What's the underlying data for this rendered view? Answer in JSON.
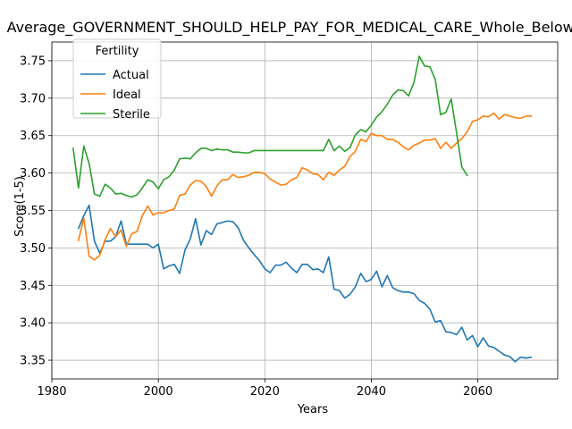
{
  "chart_data": {
    "type": "line",
    "title": "Average_GOVERNMENT_SHOULD_HELP_PAY_FOR_MEDICAL_CARE_Whole_Below_Average",
    "xlabel": "Years",
    "ylabel": "Score(1-5)",
    "xlim": [
      1980,
      2075
    ],
    "ylim": [
      3.325,
      3.775
    ],
    "xticks": [
      1980,
      2000,
      2020,
      2040,
      2060
    ],
    "yticks": [
      3.35,
      3.4,
      3.45,
      3.5,
      3.55,
      3.6,
      3.65,
      3.7,
      3.75
    ],
    "grid": true,
    "legend": {
      "title": "Fertility",
      "position": "upper-left"
    },
    "series": [
      {
        "name": "Actual",
        "color": "#1f77b4",
        "x": [
          1985,
          1986,
          1987,
          1988,
          1989,
          1990,
          1991,
          1992,
          1993,
          1994,
          1995,
          1996,
          1997,
          1998,
          1999,
          2000,
          2001,
          2002,
          2003,
          2004,
          2005,
          2006,
          2007,
          2008,
          2009,
          2010,
          2011,
          2012,
          2013,
          2014,
          2015,
          2016,
          2017,
          2018,
          2019,
          2020,
          2021,
          2022,
          2023,
          2024,
          2025,
          2026,
          2027,
          2028,
          2029,
          2030,
          2031,
          2032,
          2033,
          2034,
          2035,
          2036,
          2037,
          2038,
          2039,
          2040,
          2041,
          2042,
          2043,
          2044,
          2045,
          2046,
          2047,
          2048,
          2049,
          2050,
          2051,
          2052,
          2053,
          2054,
          2055,
          2056,
          2057,
          2058,
          2059,
          2060,
          2061,
          2062,
          2063,
          2064,
          2065,
          2066,
          2067,
          2068,
          2069,
          2070
        ],
        "values": [
          3.526,
          3.543,
          3.557,
          3.509,
          3.493,
          3.509,
          3.509,
          3.515,
          3.536,
          3.505,
          3.505,
          3.505,
          3.505,
          3.505,
          3.5,
          3.505,
          3.472,
          3.476,
          3.478,
          3.466,
          3.497,
          3.512,
          3.539,
          3.504,
          3.523,
          3.518,
          3.532,
          3.534,
          3.536,
          3.535,
          3.527,
          3.51,
          3.5,
          3.491,
          3.483,
          3.472,
          3.467,
          3.477,
          3.477,
          3.481,
          3.473,
          3.467,
          3.478,
          3.478,
          3.471,
          3.472,
          3.467,
          3.488,
          3.445,
          3.443,
          3.433,
          3.438,
          3.448,
          3.466,
          3.455,
          3.458,
          3.469,
          3.448,
          3.463,
          3.447,
          3.443,
          3.441,
          3.441,
          3.439,
          3.43,
          3.426,
          3.418,
          3.401,
          3.403,
          3.388,
          3.387,
          3.384,
          3.394,
          3.377,
          3.383,
          3.368,
          3.38,
          3.369,
          3.367,
          3.362,
          3.357,
          3.355,
          3.348,
          3.354,
          3.353,
          3.354
        ]
      },
      {
        "name": "Ideal",
        "color": "#ff7f0e",
        "x": [
          1985,
          1986,
          1987,
          1988,
          1989,
          1990,
          1991,
          1992,
          1993,
          1994,
          1995,
          1996,
          1997,
          1998,
          1999,
          2000,
          2001,
          2002,
          2003,
          2004,
          2005,
          2006,
          2007,
          2008,
          2009,
          2010,
          2011,
          2012,
          2013,
          2014,
          2015,
          2016,
          2017,
          2018,
          2019,
          2020,
          2021,
          2022,
          2023,
          2024,
          2025,
          2026,
          2027,
          2028,
          2029,
          2030,
          2031,
          2032,
          2033,
          2034,
          2035,
          2036,
          2037,
          2038,
          2039,
          2040,
          2041,
          2042,
          2043,
          2044,
          2045,
          2046,
          2047,
          2048,
          2049,
          2050,
          2051,
          2052,
          2053,
          2054,
          2055,
          2056,
          2057,
          2058,
          2059,
          2060,
          2061,
          2062,
          2063,
          2064,
          2065,
          2066,
          2067,
          2068,
          2069,
          2070
        ],
        "values": [
          3.51,
          3.54,
          3.489,
          3.484,
          3.49,
          3.511,
          3.526,
          3.515,
          3.524,
          3.502,
          3.519,
          3.522,
          3.543,
          3.556,
          3.544,
          3.547,
          3.547,
          3.55,
          3.552,
          3.57,
          3.572,
          3.584,
          3.59,
          3.589,
          3.582,
          3.569,
          3.583,
          3.591,
          3.591,
          3.598,
          3.594,
          3.595,
          3.597,
          3.601,
          3.601,
          3.599,
          3.592,
          3.588,
          3.584,
          3.585,
          3.591,
          3.594,
          3.607,
          3.604,
          3.599,
          3.598,
          3.591,
          3.601,
          3.597,
          3.604,
          3.609,
          3.622,
          3.629,
          3.645,
          3.642,
          3.653,
          3.65,
          3.65,
          3.645,
          3.645,
          3.641,
          3.635,
          3.631,
          3.637,
          3.64,
          3.644,
          3.644,
          3.646,
          3.633,
          3.641,
          3.633,
          3.64,
          3.646,
          3.655,
          3.669,
          3.671,
          3.676,
          3.675,
          3.68,
          3.672,
          3.678,
          3.676,
          3.674,
          3.673,
          3.676,
          3.676
        ]
      },
      {
        "name": "Sterile",
        "color": "#2ca02c",
        "x": [
          1984,
          1985,
          1986,
          1987,
          1988,
          1989,
          1990,
          1991,
          1992,
          1993,
          1994,
          1995,
          1996,
          1997,
          1998,
          1999,
          2000,
          2001,
          2002,
          2003,
          2004,
          2005,
          2006,
          2007,
          2008,
          2009,
          2010,
          2011,
          2012,
          2013,
          2014,
          2015,
          2016,
          2017,
          2018,
          2019,
          2020,
          2021,
          2022,
          2023,
          2024,
          2025,
          2026,
          2027,
          2028,
          2029,
          2030,
          2031,
          2032,
          2033,
          2034,
          2035,
          2036,
          2037,
          2038,
          2039,
          2040,
          2041,
          2042,
          2043,
          2044,
          2045,
          2046,
          2047,
          2048,
          2049,
          2050,
          2051,
          2052,
          2053,
          2054,
          2055,
          2056,
          2057,
          2058
        ],
        "values": [
          3.633,
          3.58,
          3.636,
          3.613,
          3.572,
          3.569,
          3.585,
          3.58,
          3.572,
          3.573,
          3.57,
          3.568,
          3.571,
          3.58,
          3.591,
          3.588,
          3.579,
          3.591,
          3.595,
          3.604,
          3.619,
          3.62,
          3.619,
          3.627,
          3.633,
          3.633,
          3.63,
          3.632,
          3.631,
          3.631,
          3.628,
          3.628,
          3.627,
          3.627,
          3.63,
          3.63,
          3.63,
          3.63,
          3.63,
          3.63,
          3.63,
          3.63,
          3.63,
          3.63,
          3.63,
          3.63,
          3.63,
          3.63,
          3.645,
          3.63,
          3.636,
          3.629,
          3.634,
          3.651,
          3.658,
          3.655,
          3.664,
          3.675,
          3.682,
          3.692,
          3.704,
          3.711,
          3.71,
          3.703,
          3.721,
          3.756,
          3.743,
          3.742,
          3.725,
          3.678,
          3.681,
          3.699,
          3.654,
          3.608,
          3.597
        ]
      }
    ]
  }
}
